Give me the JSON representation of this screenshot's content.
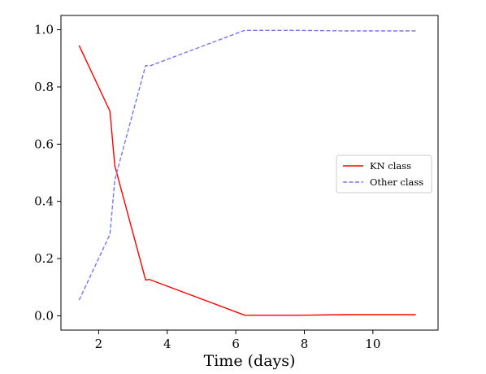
{
  "chart_data": {
    "type": "line",
    "xlabel": "Time (days)",
    "ylabel": "",
    "xlim": [
      0.9,
      11.9
    ],
    "ylim": [
      -0.05,
      1.05
    ],
    "xticks": [
      2,
      4,
      6,
      8,
      10
    ],
    "yticks": [
      0.0,
      0.2,
      0.4,
      0.6,
      0.8,
      1.0
    ],
    "xtick_labels": [
      "2",
      "4",
      "6",
      "8",
      "10"
    ],
    "ytick_labels": [
      "0.0",
      "0.2",
      "0.4",
      "0.6",
      "0.8",
      "1.0"
    ],
    "grid": false,
    "legend_position": "center-right",
    "series": [
      {
        "name": "KN class",
        "color": "#ff0000",
        "style": "solid",
        "x": [
          1.43,
          2.33,
          2.47,
          3.37,
          3.48,
          6.26,
          7.85,
          9.18,
          11.25
        ],
        "y": [
          0.945,
          0.715,
          0.525,
          0.125,
          0.127,
          0.002,
          0.002,
          0.004,
          0.004
        ]
      },
      {
        "name": "Other class",
        "color": "#7777ee",
        "style": "dashed",
        "x": [
          1.43,
          2.33,
          2.47,
          3.37,
          3.48,
          6.26,
          7.85,
          9.18,
          11.25
        ],
        "y": [
          0.055,
          0.285,
          0.475,
          0.875,
          0.873,
          0.998,
          0.998,
          0.996,
          0.996
        ]
      }
    ]
  }
}
